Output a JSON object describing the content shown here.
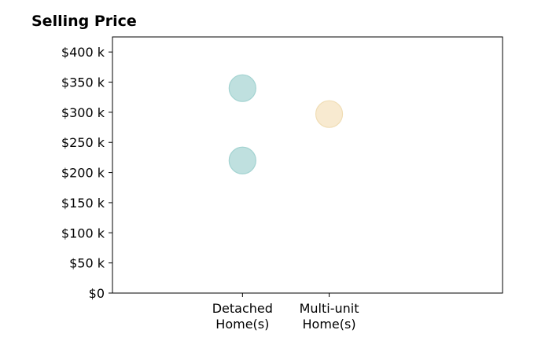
{
  "chart_data": {
    "type": "scatter",
    "title": "Selling Price",
    "xlabel": "",
    "ylabel": "",
    "categories": [
      "Detached\nHome(s)",
      "Multi-unit\nHome(s)"
    ],
    "ylim": [
      0,
      425
    ],
    "yticks": [
      0,
      50,
      100,
      150,
      200,
      250,
      300,
      350,
      400
    ],
    "ytick_labels": [
      "$0",
      "$50 k",
      "$100 k",
      "$150 k",
      "$200 k",
      "$250 k",
      "$300 k",
      "$350 k",
      "$400 k"
    ],
    "grid": false,
    "points": [
      {
        "category": "Detached\nHome(s)",
        "value": 340,
        "color": "#bfe0df",
        "stroke": "#a3d3d1"
      },
      {
        "category": "Detached\nHome(s)",
        "value": 220,
        "color": "#bfe0df",
        "stroke": "#a3d3d1"
      },
      {
        "category": "Multi-unit\nHome(s)",
        "value": 297,
        "color": "#f8ead0",
        "stroke": "#f0ddb5"
      }
    ]
  }
}
